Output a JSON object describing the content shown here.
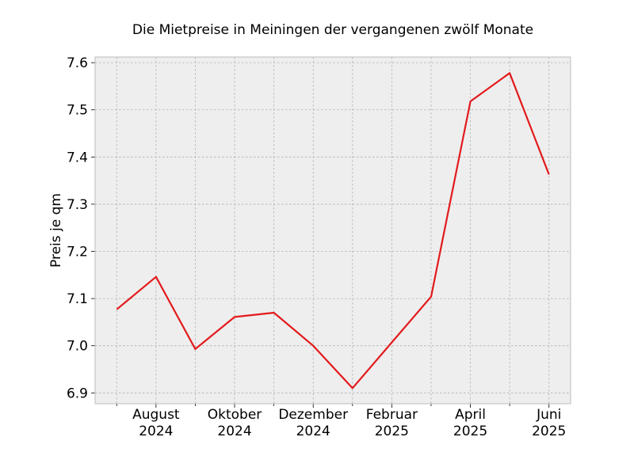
{
  "chart_data": {
    "type": "line",
    "title": "Die Mietpreise in Meiningen der vergangenen zwölf Monate",
    "xlabel": "",
    "ylabel": "Preis je qm",
    "x": [
      "2024-07",
      "2024-08",
      "2024-09",
      "2024-10",
      "2024-11",
      "2024-12",
      "2025-01",
      "2025-02",
      "2025-03",
      "2025-04",
      "2025-05",
      "2025-06"
    ],
    "series": [
      {
        "values": [
          7.077,
          7.146,
          6.993,
          7.061,
          7.07,
          7.0,
          6.91,
          7.007,
          7.104,
          7.518,
          7.578,
          7.363
        ]
      }
    ],
    "x_tick_labels": [
      {
        "x": "2024-08",
        "lines": [
          "August",
          "2024"
        ]
      },
      {
        "x": "2024-10",
        "lines": [
          "Oktober",
          "2024"
        ]
      },
      {
        "x": "2024-12",
        "lines": [
          "Dezember",
          "2024"
        ]
      },
      {
        "x": "2025-02",
        "lines": [
          "Februar",
          "2025"
        ]
      },
      {
        "x": "2025-04",
        "lines": [
          "April",
          "2025"
        ]
      },
      {
        "x": "2025-06",
        "lines": [
          "Juni",
          "2025"
        ]
      }
    ],
    "y_ticks": [
      6.9,
      7.0,
      7.1,
      7.2,
      7.3,
      7.4,
      7.5,
      7.6
    ],
    "y_tick_labels": [
      "6.9",
      "7.0",
      "7.1",
      "7.2",
      "7.3",
      "7.4",
      "7.5",
      "7.6"
    ],
    "ylim": [
      6.877,
      7.612
    ],
    "grid": true,
    "legend": false,
    "colors": {
      "line": "#e31a1c",
      "plot_background": "#eeeeee",
      "grid": "#b0b0b0",
      "frame": "#bcbcbc",
      "text": "#000000"
    }
  }
}
